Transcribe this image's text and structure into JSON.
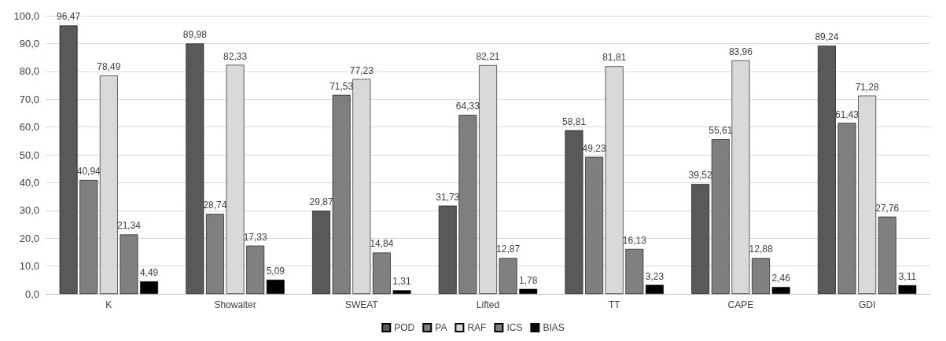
{
  "chart_data": {
    "type": "bar",
    "categories": [
      "K",
      "Showalter",
      "SWEAT",
      "Lifted",
      "TT",
      "CAPE",
      "GDI"
    ],
    "series": [
      {
        "name": "POD",
        "color": "#595959",
        "values": [
          96.47,
          89.98,
          29.87,
          31.73,
          58.81,
          39.52,
          89.24
        ],
        "value_labels": [
          "96,47",
          "89,98",
          "29,87",
          "31,73",
          "58,81",
          "39,52",
          "89,24"
        ]
      },
      {
        "name": "PA",
        "color": "#7f7f7f",
        "values": [
          40.94,
          28.74,
          71.53,
          64.33,
          49.23,
          55.61,
          61.43
        ],
        "value_labels": [
          "40,94",
          "28,74",
          "71,53",
          "64,33",
          "49,23",
          "55,61",
          "61,43"
        ]
      },
      {
        "name": "RAF",
        "color": "#d9d9d9",
        "values": [
          78.49,
          82.33,
          77.23,
          82.21,
          81.81,
          83.96,
          71.28
        ],
        "value_labels": [
          "78,49",
          "82,33",
          "77,23",
          "82,21",
          "81,81",
          "83,96",
          "71,28"
        ]
      },
      {
        "name": "ICS",
        "color": "#808080",
        "values": [
          21.34,
          17.33,
          14.84,
          12.87,
          16.13,
          12.88,
          27.76
        ],
        "value_labels": [
          "21,34",
          "17,33",
          "14,84",
          "12,87",
          "16,13",
          "12,88",
          "27,76"
        ]
      },
      {
        "name": "BIAS",
        "color": "#000000",
        "values": [
          4.49,
          5.09,
          1.31,
          1.78,
          3.23,
          2.46,
          3.11
        ],
        "value_labels": [
          "4,49",
          "5,09",
          "1,31",
          "1,78",
          "3,23",
          "2,46",
          "3,11"
        ]
      }
    ],
    "ylim": [
      0,
      100
    ],
    "yticks": [
      {
        "value": 0,
        "label": "0,0"
      },
      {
        "value": 10,
        "label": "10,0"
      },
      {
        "value": 20,
        "label": "20,0"
      },
      {
        "value": 30,
        "label": "30,0"
      },
      {
        "value": 40,
        "label": "40,0"
      },
      {
        "value": 50,
        "label": "50,0"
      },
      {
        "value": 60,
        "label": "60,0"
      },
      {
        "value": 70,
        "label": "70,0"
      },
      {
        "value": 80,
        "label": "80,0"
      },
      {
        "value": 90,
        "label": "90,0"
      },
      {
        "value": 100,
        "label": "100,0"
      }
    ],
    "grid": "y",
    "legend": "bottom"
  }
}
